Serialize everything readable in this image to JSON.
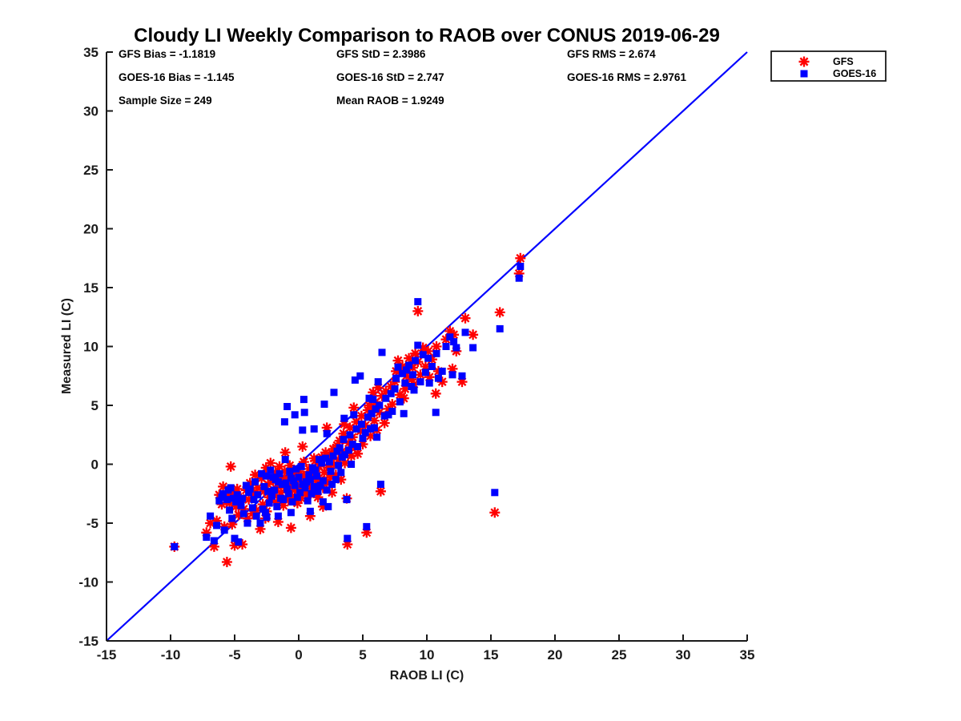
{
  "title": "Cloudy LI Weekly Comparison to RAOB over CONUS 2019-06-29",
  "stats": {
    "gfs_bias": "GFS Bias = -1.1819",
    "gfs_std": "GFS StD = 2.3986",
    "gfs_rms": "GFS RMS = 2.674",
    "goes_bias": "GOES-16 Bias = -1.145",
    "goes_std": "GOES-16 StD = 2.747",
    "goes_rms": "GOES-16 RMS = 2.9761",
    "sample_size": "Sample Size = 249",
    "mean_raob": "Mean RAOB = 1.9249"
  },
  "legend": {
    "gfs_label": "GFS",
    "goes_label": "GOES-16"
  },
  "colors": {
    "gfs": "#ff0000",
    "goes": "#0000ff",
    "identity_line": "#0000ff",
    "axis": "#1a1a1a",
    "text": "#000000",
    "background": "#ffffff"
  },
  "chart_data": {
    "type": "scatter",
    "title": "Cloudy LI Weekly Comparison to RAOB over CONUS 2019-06-29",
    "xlabel": "RAOB LI (C)",
    "ylabel": "Measured LI (C)",
    "xlim": [
      -15,
      35
    ],
    "ylim": [
      -15,
      35
    ],
    "xticks": [
      -15,
      -10,
      -5,
      0,
      5,
      10,
      15,
      20,
      25,
      30,
      35
    ],
    "yticks": [
      -15,
      -10,
      -5,
      0,
      5,
      10,
      15,
      20,
      25,
      30,
      35
    ],
    "grid": false,
    "legend_position": "outside-top-right",
    "identity_line": {
      "from": [
        -15,
        -15
      ],
      "to": [
        35,
        35
      ],
      "color": "#0000ff"
    },
    "series": [
      {
        "name": "GFS",
        "marker": "asterisk",
        "color": "#ff0000"
      },
      {
        "name": "GOES-16",
        "marker": "square",
        "color": "#0000ff"
      }
    ],
    "points_format": [
      "raob_x",
      "gfs_y",
      "goes_y"
    ],
    "points": [
      [
        -9.7,
        -7.0,
        -7.0
      ],
      [
        15.3,
        -4.1,
        -2.4
      ],
      [
        15.7,
        12.9,
        11.5
      ],
      [
        17.3,
        17.5,
        16.8
      ],
      [
        17.2,
        16.2,
        15.8
      ],
      [
        9.3,
        13.0,
        13.8
      ],
      [
        13.6,
        11.0,
        9.9
      ],
      [
        13.0,
        12.4,
        11.2
      ],
      [
        -7.2,
        -5.8,
        -6.2
      ],
      [
        -6.9,
        -5.0,
        -4.4
      ],
      [
        -6.6,
        -7.0,
        -6.5
      ],
      [
        -6.4,
        -4.8,
        -5.2
      ],
      [
        -6.2,
        -2.6,
        -3.1
      ],
      [
        -6.0,
        -3.4,
        -2.8
      ],
      [
        -5.9,
        -1.9,
        -2.5
      ],
      [
        -5.8,
        -5.3,
        -5.6
      ],
      [
        -5.6,
        -8.3,
        -3.0
      ],
      [
        -5.5,
        -2.7,
        -2.2
      ],
      [
        -5.4,
        -3.3,
        -3.9
      ],
      [
        -5.3,
        -0.2,
        -2.0
      ],
      [
        -5.2,
        -5.1,
        -4.6
      ],
      [
        -5.1,
        -2.4,
        -2.9
      ],
      [
        -5.0,
        -6.9,
        -6.3
      ],
      [
        -4.9,
        -3.6,
        -3.2
      ],
      [
        -4.8,
        -2.1,
        -2.6
      ],
      [
        -4.7,
        -4.3,
        -6.6
      ],
      [
        -4.5,
        -2.9,
        -3.5
      ],
      [
        -4.4,
        -6.8,
        -2.9
      ],
      [
        -4.3,
        -3.8,
        -4.2
      ],
      [
        -4.1,
        -2.2,
        -1.8
      ],
      [
        -4.0,
        -4.6,
        -5.0
      ],
      [
        -3.9,
        -3.0,
        -2.4
      ],
      [
        -3.8,
        -1.6,
        -2.1
      ],
      [
        -3.6,
        -4.2,
        -3.7
      ],
      [
        -3.5,
        -2.5,
        -3.0
      ],
      [
        -3.4,
        -0.9,
        -1.5
      ],
      [
        -3.3,
        -3.9,
        -4.4
      ],
      [
        -3.2,
        -2.0,
        -2.6
      ],
      [
        -3.0,
        -5.5,
        -5.0
      ],
      [
        -2.9,
        -1.2,
        -0.8
      ],
      [
        -2.8,
        -3.4,
        -3.8
      ],
      [
        -2.7,
        -2.3,
        -1.9
      ],
      [
        -2.6,
        -4.6,
        -4.1
      ],
      [
        -2.55,
        -0.3,
        -1.0
      ],
      [
        -2.5,
        -4.0,
        -4.5
      ],
      [
        -2.4,
        -1.7,
        -2.3
      ],
      [
        -2.3,
        -2.8,
        -3.3
      ],
      [
        -2.2,
        0.1,
        -0.5
      ],
      [
        -2.1,
        -3.1,
        -2.7
      ],
      [
        -2.0,
        -1.4,
        -1.1
      ],
      [
        -1.9,
        -2.6,
        -2.2
      ],
      [
        -1.8,
        -0.7,
        -1.3
      ],
      [
        -1.7,
        -3.2,
        -3.6
      ],
      [
        -1.6,
        -4.9,
        -4.4
      ],
      [
        -1.6,
        -1.9,
        -1.5
      ],
      [
        -1.5,
        -0.2,
        -0.8
      ],
      [
        -1.4,
        -2.4,
        -2.9
      ],
      [
        -1.3,
        -1.1,
        -1.7
      ],
      [
        -1.2,
        -3.5,
        -3.0
      ],
      [
        -1.1,
        -0.6,
        3.6
      ],
      [
        -1.05,
        1.0,
        0.4
      ],
      [
        -1.0,
        -2.0,
        -1.6
      ],
      [
        -0.9,
        -1.6,
        4.9
      ],
      [
        -0.9,
        -1.4,
        -2.1
      ],
      [
        -0.8,
        -3.0,
        -2.5
      ],
      [
        -0.7,
        -0.1,
        -0.6
      ],
      [
        -0.6,
        -5.4,
        -4.1
      ],
      [
        -0.6,
        -1.8,
        -1.2
      ],
      [
        -0.5,
        -2.7,
        -3.2
      ],
      [
        -0.4,
        -0.9,
        -1.4
      ],
      [
        -0.3,
        -2.1,
        4.2
      ],
      [
        -0.3,
        -2.2,
        -1.8
      ],
      [
        -0.2,
        -1.5,
        -0.4
      ],
      [
        -0.1,
        -3.3,
        -2.8
      ],
      [
        0.0,
        -0.6,
        -1.1
      ],
      [
        0.1,
        -1.9,
        -2.4
      ],
      [
        0.2,
        -2.9,
        -0.2
      ],
      [
        0.3,
        1.5,
        2.9
      ],
      [
        0.3,
        -1.2,
        -1.7
      ],
      [
        0.4,
        0.2,
        5.5
      ],
      [
        0.45,
        -1.0,
        4.4
      ],
      [
        0.5,
        -2.3,
        -2.0
      ],
      [
        0.6,
        -1.0,
        -1.5
      ],
      [
        0.7,
        -2.6,
        -3.1
      ],
      [
        0.8,
        -0.4,
        -0.9
      ],
      [
        0.9,
        -4.4,
        -4.0
      ],
      [
        0.9,
        -1.7,
        -1.3
      ],
      [
        1.0,
        -2.1,
        -2.5
      ],
      [
        1.1,
        -0.8,
        -0.3
      ],
      [
        1.2,
        0.5,
        3.0
      ],
      [
        1.2,
        -2.4,
        -1.9
      ],
      [
        1.3,
        0.3,
        -0.5
      ],
      [
        1.4,
        -1.5,
        -1.0
      ],
      [
        1.5,
        -2.8,
        -2.3
      ],
      [
        1.6,
        -0.2,
        0.4
      ],
      [
        1.7,
        -1.3,
        -1.8
      ],
      [
        1.8,
        0.6,
        0.1
      ],
      [
        1.9,
        -3.6,
        -3.2
      ],
      [
        1.9,
        -2.0,
        -1.4
      ],
      [
        2.0,
        -0.7,
        5.1
      ],
      [
        2.1,
        1.0,
        0.5
      ],
      [
        2.2,
        3.1,
        2.6
      ],
      [
        2.2,
        -1.6,
        -2.2
      ],
      [
        2.3,
        -0.3,
        -3.6
      ],
      [
        2.4,
        0.8,
        0.2
      ],
      [
        2.5,
        -1.1,
        -0.6
      ],
      [
        2.6,
        -2.4,
        -1.7
      ],
      [
        2.7,
        1.3,
        0.7
      ],
      [
        2.75,
        0.0,
        6.1
      ],
      [
        2.9,
        -0.9,
        -1.3
      ],
      [
        3.0,
        1.6,
        1.1
      ],
      [
        3.1,
        0.4,
        -0.1
      ],
      [
        3.2,
        2.0,
        1.4
      ],
      [
        3.3,
        -1.3,
        -0.7
      ],
      [
        3.4,
        1.1,
        0.6
      ],
      [
        3.5,
        2.6,
        2.1
      ],
      [
        3.55,
        3.4,
        3.9
      ],
      [
        3.6,
        0.1,
        0.8
      ],
      [
        3.75,
        -2.9,
        -3.0
      ],
      [
        3.8,
        -6.8,
        -6.3
      ],
      [
        3.9,
        1.8,
        1.2
      ],
      [
        4.0,
        3.1,
        2.5
      ],
      [
        4.1,
        0.7,
        0.0
      ],
      [
        4.2,
        2.3,
        1.7
      ],
      [
        4.3,
        4.8,
        4.2
      ],
      [
        4.4,
        1.4,
        7.15
      ],
      [
        4.5,
        3.6,
        3.0
      ],
      [
        4.6,
        0.9,
        1.5
      ],
      [
        4.8,
        2.8,
        7.5
      ],
      [
        4.9,
        4.1,
        3.4
      ],
      [
        5.0,
        1.7,
        2.2
      ],
      [
        5.2,
        3.3,
        2.7
      ],
      [
        5.3,
        -5.8,
        -5.3
      ],
      [
        5.4,
        4.6,
        4.0
      ],
      [
        5.5,
        5.0,
        5.6
      ],
      [
        5.6,
        2.4,
        3.0
      ],
      [
        5.7,
        4.9,
        4.3
      ],
      [
        5.8,
        6.1,
        5.5
      ],
      [
        5.9,
        3.7,
        3.1
      ],
      [
        6.0,
        5.3,
        4.7
      ],
      [
        6.1,
        2.9,
        2.3
      ],
      [
        6.2,
        6.5,
        7.0
      ],
      [
        6.3,
        4.4,
        5.0
      ],
      [
        6.4,
        -2.3,
        -1.7
      ],
      [
        6.5,
        5.8,
        9.5
      ],
      [
        6.7,
        3.5,
        4.1
      ],
      [
        6.8,
        6.2,
        5.6
      ],
      [
        7.0,
        4.7,
        4.2
      ],
      [
        7.2,
        6.6,
        6.0
      ],
      [
        7.3,
        5.1,
        4.5
      ],
      [
        7.5,
        7.0,
        6.4
      ],
      [
        7.6,
        7.9,
        7.3
      ],
      [
        7.75,
        8.8,
        8.25
      ],
      [
        7.9,
        5.9,
        5.3
      ],
      [
        8.1,
        8.3,
        7.7
      ],
      [
        8.2,
        5.6,
        4.3
      ],
      [
        8.3,
        6.4,
        6.9
      ],
      [
        8.4,
        7.5,
        8.0
      ],
      [
        8.6,
        9.0,
        8.4
      ],
      [
        8.8,
        7.2,
        6.6
      ],
      [
        8.9,
        8.2,
        7.6
      ],
      [
        9.0,
        6.8,
        6.3
      ],
      [
        9.1,
        9.4,
        8.8
      ],
      [
        9.3,
        8.7,
        10.1
      ],
      [
        9.5,
        7.6,
        7.0
      ],
      [
        9.7,
        9.9,
        9.3
      ],
      [
        9.9,
        8.3,
        7.8
      ],
      [
        10.1,
        9.6,
        9.0
      ],
      [
        10.2,
        7.4,
        6.9
      ],
      [
        10.4,
        8.9,
        8.3
      ],
      [
        10.7,
        6.0,
        4.4
      ],
      [
        10.75,
        10.0,
        9.4
      ],
      [
        10.9,
        7.9,
        7.3
      ],
      [
        11.2,
        7.0,
        7.9
      ],
      [
        11.5,
        10.6,
        10.0
      ],
      [
        11.8,
        11.3,
        10.8
      ],
      [
        12.0,
        8.1,
        7.6
      ],
      [
        12.1,
        11.0,
        10.4
      ],
      [
        12.3,
        9.6,
        9.9
      ],
      [
        12.75,
        7.0,
        7.5
      ]
    ]
  }
}
